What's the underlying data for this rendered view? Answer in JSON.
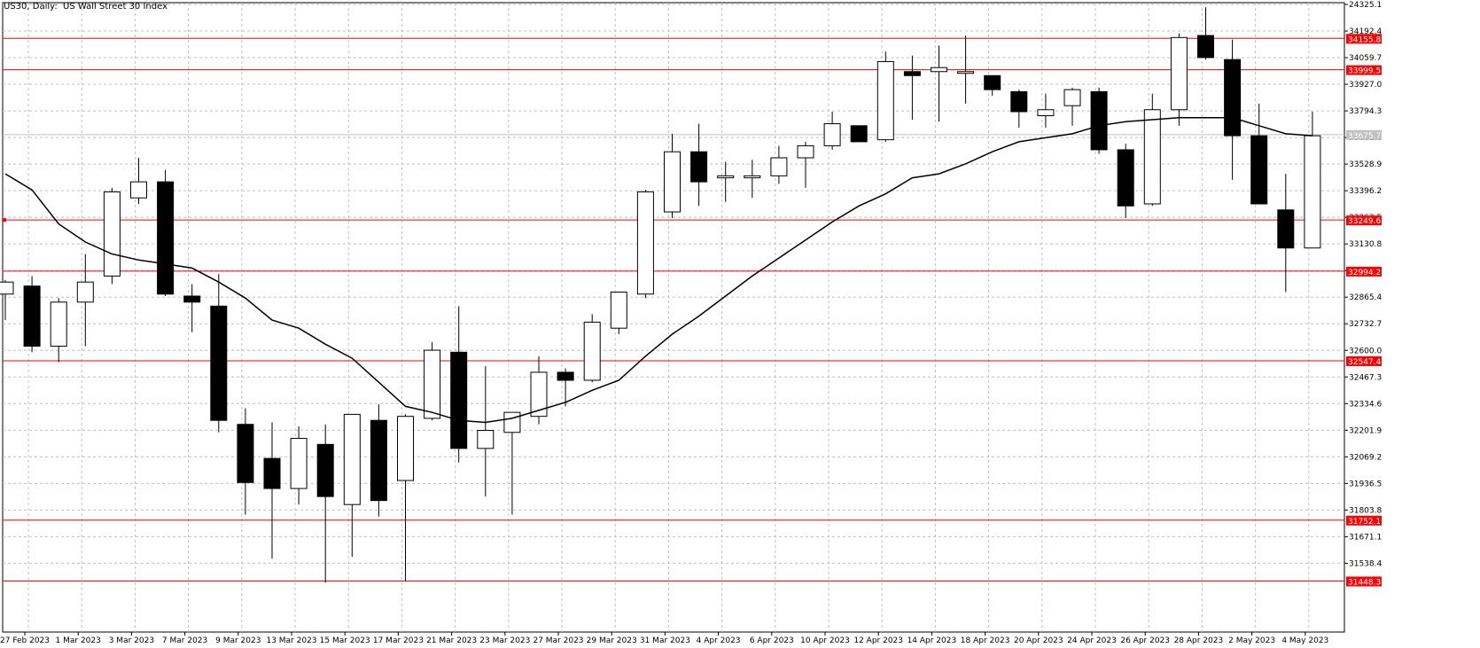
{
  "window": {
    "title": "US30, Daily:  US Wall Street 30 Index"
  },
  "colors": {
    "background": "#ffffff",
    "grid": "#c0c0c0",
    "candle": "#000000",
    "level_line": "#ff0000",
    "ma_line": "#000000",
    "last_price_line": "#c0c0c0"
  },
  "chart_data": {
    "type": "candlestick",
    "title": "US30, Daily:  US Wall Street 30 Index",
    "ylim": [
      31440,
      24325.1
    ],
    "y_ticks": [
      "24325.1",
      "34192.4",
      "34059.7",
      "33927.0",
      "33794.3",
      "33661.6",
      "33528.9",
      "33396.2",
      "33263.5",
      "33130.8",
      "32998.1",
      "32865.4",
      "32732.7",
      "32600.0",
      "32467.3",
      "32334.6",
      "32201.9",
      "32069.2",
      "31936.5",
      "31803.8",
      "31671.1",
      "31538.4"
    ],
    "x_labels": [
      "27 Feb 2023",
      "1 Mar 2023",
      "3 Mar 2023",
      "7 Mar 2023",
      "9 Mar 2023",
      "13 Mar 2023",
      "15 Mar 2023",
      "17 Mar 2023",
      "21 Mar 2023",
      "23 Mar 2023",
      "27 Mar 2023",
      "29 Mar 2023",
      "31 Mar 2023",
      "4 Apr 2023",
      "6 Apr 2023",
      "10 Apr 2023",
      "12 Apr 2023",
      "14 Apr 2023",
      "18 Apr 2023",
      "20 Apr 2023",
      "24 Apr 2023",
      "26 Apr 2023",
      "28 Apr 2023",
      "2 May 2023",
      "4 May 2023"
    ],
    "x_label_slots": [
      0,
      2,
      4,
      6,
      8,
      10,
      12,
      14,
      16,
      18,
      20,
      22,
      24,
      26,
      28,
      30,
      32,
      34,
      36,
      38,
      40,
      42,
      44,
      46,
      48
    ],
    "candles": [
      {
        "o": 32880,
        "h": 32950,
        "l": 32750,
        "c": 32940
      },
      {
        "o": 32920,
        "h": 32970,
        "l": 32590,
        "c": 32620
      },
      {
        "o": 32620,
        "h": 32860,
        "l": 32540,
        "c": 32840
      },
      {
        "o": 32840,
        "h": 33080,
        "l": 32620,
        "c": 32940
      },
      {
        "o": 32970,
        "h": 33410,
        "l": 32930,
        "c": 33390
      },
      {
        "o": 33360,
        "h": 33560,
        "l": 33330,
        "c": 33440
      },
      {
        "o": 33440,
        "h": 33500,
        "l": 32870,
        "c": 32880
      },
      {
        "o": 32870,
        "h": 32930,
        "l": 32690,
        "c": 32840
      },
      {
        "o": 32820,
        "h": 32980,
        "l": 32190,
        "c": 32250
      },
      {
        "o": 32230,
        "h": 32310,
        "l": 31780,
        "c": 31940
      },
      {
        "o": 32060,
        "h": 32240,
        "l": 31560,
        "c": 31910
      },
      {
        "o": 31910,
        "h": 32220,
        "l": 31830,
        "c": 32160
      },
      {
        "o": 32130,
        "h": 32230,
        "l": 31440,
        "c": 31870
      },
      {
        "o": 31830,
        "h": 32280,
        "l": 31570,
        "c": 32280
      },
      {
        "o": 32250,
        "h": 32330,
        "l": 31770,
        "c": 31850
      },
      {
        "o": 31950,
        "h": 32280,
        "l": 31450,
        "c": 32270
      },
      {
        "o": 32260,
        "h": 32640,
        "l": 32250,
        "c": 32600
      },
      {
        "o": 32590,
        "h": 32820,
        "l": 32040,
        "c": 32110
      },
      {
        "o": 32110,
        "h": 32520,
        "l": 31870,
        "c": 32200
      },
      {
        "o": 32190,
        "h": 32290,
        "l": 31780,
        "c": 32290
      },
      {
        "o": 32270,
        "h": 32570,
        "l": 32230,
        "c": 32490
      },
      {
        "o": 32490,
        "h": 32510,
        "l": 32320,
        "c": 32450
      },
      {
        "o": 32450,
        "h": 32780,
        "l": 32440,
        "c": 32740
      },
      {
        "o": 32710,
        "h": 32890,
        "l": 32680,
        "c": 32890
      },
      {
        "o": 32880,
        "h": 33400,
        "l": 32860,
        "c": 33390
      },
      {
        "o": 33290,
        "h": 33680,
        "l": 33260,
        "c": 33590
      },
      {
        "o": 33590,
        "h": 33730,
        "l": 33320,
        "c": 33440
      },
      {
        "o": 33460,
        "h": 33540,
        "l": 33340,
        "c": 33470
      },
      {
        "o": 33460,
        "h": 33550,
        "l": 33360,
        "c": 33470
      },
      {
        "o": 33470,
        "h": 33620,
        "l": 33430,
        "c": 33560
      },
      {
        "o": 33560,
        "h": 33640,
        "l": 33410,
        "c": 33620
      },
      {
        "o": 33620,
        "h": 33790,
        "l": 33600,
        "c": 33730
      },
      {
        "o": 33720,
        "h": 33720,
        "l": 33640,
        "c": 33640
      },
      {
        "o": 33650,
        "h": 34090,
        "l": 33640,
        "c": 34040
      },
      {
        "o": 33990,
        "h": 34070,
        "l": 33750,
        "c": 33970
      },
      {
        "o": 33990,
        "h": 34120,
        "l": 33740,
        "c": 34010
      },
      {
        "o": 33990,
        "h": 34170,
        "l": 33830,
        "c": 33990
      },
      {
        "o": 33970,
        "h": 33970,
        "l": 33870,
        "c": 33900
      },
      {
        "o": 33890,
        "h": 33900,
        "l": 33710,
        "c": 33790
      },
      {
        "o": 33770,
        "h": 33880,
        "l": 33710,
        "c": 33800
      },
      {
        "o": 33820,
        "h": 33910,
        "l": 33720,
        "c": 33900
      },
      {
        "o": 33890,
        "h": 33910,
        "l": 33580,
        "c": 33600
      },
      {
        "o": 33600,
        "h": 33630,
        "l": 33260,
        "c": 33320
      },
      {
        "o": 33330,
        "h": 33880,
        "l": 33320,
        "c": 33800
      },
      {
        "o": 33800,
        "h": 34180,
        "l": 33720,
        "c": 34160
      },
      {
        "o": 34170,
        "h": 34310,
        "l": 34050,
        "c": 34060
      },
      {
        "o": 34050,
        "h": 34150,
        "l": 33450,
        "c": 33670
      },
      {
        "o": 33670,
        "h": 33830,
        "l": 33330,
        "c": 33330
      },
      {
        "o": 33300,
        "h": 33480,
        "l": 32890,
        "c": 33110
      },
      {
        "o": 33110,
        "h": 33790,
        "l": 33110,
        "c": 33670
      }
    ],
    "ma": [
      33480,
      33400,
      33230,
      33140,
      33080,
      33050,
      33030,
      33010,
      32940,
      32860,
      32750,
      32710,
      32630,
      32560,
      32440,
      32320,
      32290,
      32250,
      32240,
      32260,
      32300,
      32340,
      32400,
      32450,
      32570,
      32680,
      32770,
      32870,
      32970,
      33060,
      33150,
      33240,
      33320,
      33380,
      33460,
      33480,
      33530,
      33590,
      33640,
      33660,
      33680,
      33720,
      33740,
      33750,
      33760,
      33760,
      33760,
      33720,
      33680,
      33670
    ],
    "levels": [
      {
        "value": 34155.8,
        "label": "34155.8"
      },
      {
        "value": 33999.5,
        "label": "33999.5"
      },
      {
        "value": 33249.6,
        "label": "33249.6"
      },
      {
        "value": 32994.2,
        "label": "32994.2"
      },
      {
        "value": 32547.4,
        "label": "32547.4"
      },
      {
        "value": 31752.1,
        "label": "31752.1"
      },
      {
        "value": 31448.3,
        "label": "31448.3"
      }
    ],
    "last_price": {
      "value": 33675.7,
      "label": "33675.7"
    }
  }
}
